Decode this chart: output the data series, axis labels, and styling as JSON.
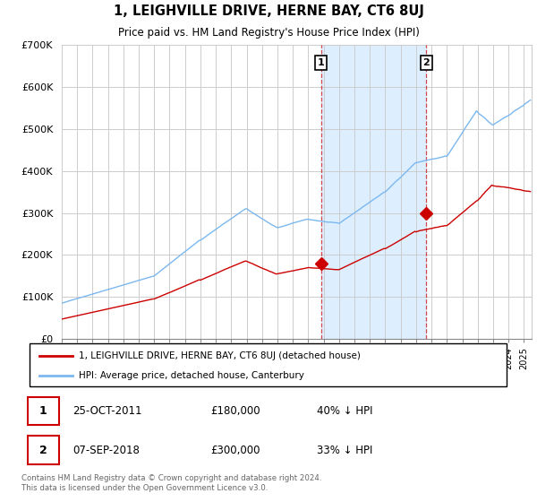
{
  "title": "1, LEIGHVILLE DRIVE, HERNE BAY, CT6 8UJ",
  "subtitle": "Price paid vs. HM Land Registry's House Price Index (HPI)",
  "hpi_color": "#7bb8f0",
  "price_color": "#cc0000",
  "background_color": "#ffffff",
  "shaded_region_color": "#ddeeff",
  "grid_color": "#cccccc",
  "yticks": [
    0,
    100000,
    200000,
    300000,
    400000,
    500000,
    600000,
    700000
  ],
  "ytick_labels": [
    "£0",
    "£100K",
    "£200K",
    "£300K",
    "£400K",
    "£500K",
    "£600K",
    "£700K"
  ],
  "purchase1_year": 2011.83,
  "purchase1_price": 180000,
  "purchase1_label": "1",
  "purchase2_year": 2018.67,
  "purchase2_price": 300000,
  "purchase2_label": "2",
  "legend_line1": "1, LEIGHVILLE DRIVE, HERNE BAY, CT6 8UJ (detached house)",
  "legend_line2": "HPI: Average price, detached house, Canterbury",
  "footer": "Contains HM Land Registry data © Crown copyright and database right 2024.\nThis data is licensed under the Open Government Licence v3.0."
}
